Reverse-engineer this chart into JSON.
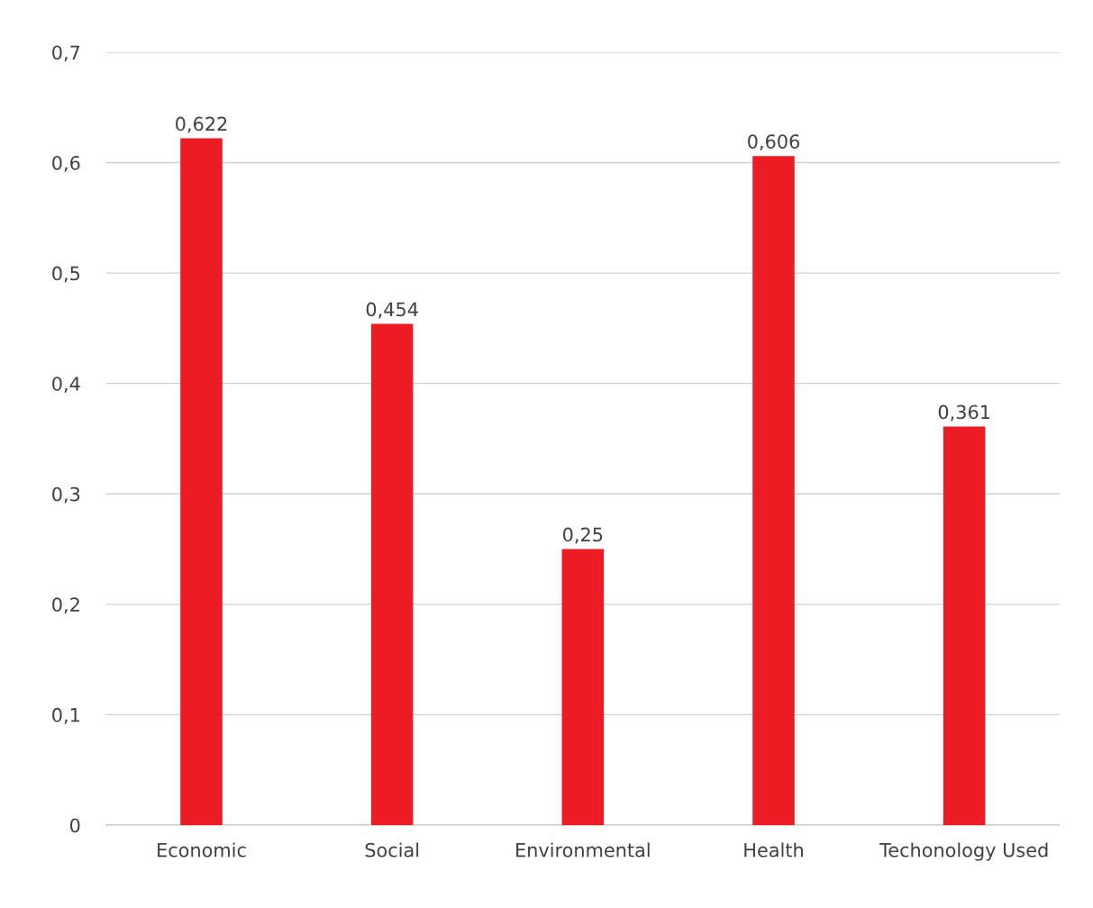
{
  "chart_data": {
    "type": "bar",
    "categories": [
      "Economic",
      "Social",
      "Environmental",
      "Health",
      "Techonology Used"
    ],
    "values": [
      0.622,
      0.454,
      0.25,
      0.606,
      0.361
    ],
    "value_labels": [
      "0,622",
      "0,454",
      "0,25",
      "0,606",
      "0,361"
    ],
    "color": "#ed1c24",
    "ylim": [
      0,
      0.7
    ],
    "yticks": [
      0,
      {
        "value": 0.1,
        "label": "0,1"
      },
      {
        "value": 0.2,
        "label": "0,2"
      },
      {
        "value": 0.3,
        "label": "0,3"
      },
      {
        "value": 0.4,
        "label": "0,4"
      },
      {
        "value": 0.5,
        "label": "0,5"
      },
      {
        "value": 0.6,
        "label": "0,6"
      },
      {
        "value": 0.7,
        "label": "0,7"
      }
    ],
    "grid": "y",
    "legend": false
  }
}
